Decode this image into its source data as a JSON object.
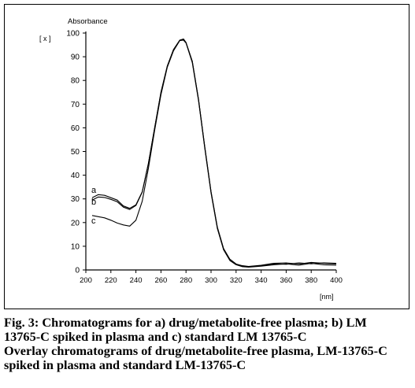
{
  "chart_data": {
    "type": "line",
    "ylabel": "Absorbance",
    "yunit": "[ x ]",
    "xunit": "[nm]",
    "xlim": [
      200,
      400
    ],
    "ylim": [
      0,
      100
    ],
    "xticks": [
      "200",
      "220",
      "240",
      "260",
      "280",
      "300",
      "320",
      "340",
      "360",
      "380",
      "400"
    ],
    "yticks": [
      "0",
      "10",
      "20",
      "30",
      "40",
      "50",
      "60",
      "70",
      "80",
      "90",
      "100"
    ],
    "grid": false,
    "series": [
      {
        "name": "a",
        "color": "#000000",
        "points": [
          [
            205,
            30.5
          ],
          [
            210,
            31.8
          ],
          [
            215,
            31.5
          ],
          [
            220,
            30.5
          ],
          [
            225,
            29.5
          ],
          [
            230,
            27
          ],
          [
            235,
            26
          ],
          [
            240,
            27.5
          ],
          [
            245,
            33
          ],
          [
            250,
            45
          ],
          [
            255,
            60
          ],
          [
            260,
            75
          ],
          [
            265,
            86
          ],
          [
            270,
            93
          ],
          [
            275,
            97
          ],
          [
            278,
            97.5
          ],
          [
            280,
            96
          ],
          [
            285,
            88
          ],
          [
            290,
            72
          ],
          [
            295,
            52
          ],
          [
            300,
            33
          ],
          [
            305,
            18
          ],
          [
            310,
            9
          ],
          [
            315,
            4.5
          ],
          [
            320,
            2.5
          ],
          [
            325,
            1.8
          ],
          [
            330,
            1.5
          ],
          [
            340,
            2
          ],
          [
            350,
            2.8
          ],
          [
            360,
            3
          ],
          [
            370,
            2.5
          ],
          [
            380,
            3.2
          ],
          [
            390,
            2.8
          ],
          [
            400,
            2.5
          ]
        ]
      },
      {
        "name": "b",
        "color": "#000000",
        "points": [
          [
            205,
            29.5
          ],
          [
            210,
            30.8
          ],
          [
            215,
            30.6
          ],
          [
            220,
            29.8
          ],
          [
            225,
            28.8
          ],
          [
            230,
            26.5
          ],
          [
            235,
            25.5
          ],
          [
            240,
            27.2
          ],
          [
            245,
            32.8
          ],
          [
            250,
            45
          ],
          [
            255,
            60
          ],
          [
            260,
            75
          ],
          [
            265,
            86
          ],
          [
            270,
            93
          ],
          [
            275,
            97
          ],
          [
            278,
            97.3
          ],
          [
            280,
            96
          ],
          [
            285,
            88
          ],
          [
            290,
            72
          ],
          [
            295,
            52
          ],
          [
            300,
            33
          ],
          [
            305,
            18
          ],
          [
            310,
            9
          ],
          [
            315,
            4.5
          ],
          [
            320,
            2.5
          ],
          [
            325,
            1.6
          ],
          [
            330,
            1.4
          ],
          [
            340,
            1.8
          ],
          [
            350,
            2.6
          ],
          [
            360,
            2.4
          ],
          [
            370,
            3
          ],
          [
            380,
            2.6
          ],
          [
            390,
            3
          ],
          [
            400,
            2.8
          ]
        ]
      },
      {
        "name": "c",
        "color": "#000000",
        "points": [
          [
            205,
            23
          ],
          [
            210,
            22.5
          ],
          [
            215,
            22
          ],
          [
            220,
            21
          ],
          [
            225,
            19.8
          ],
          [
            230,
            19
          ],
          [
            235,
            18.5
          ],
          [
            240,
            21
          ],
          [
            245,
            29
          ],
          [
            250,
            43
          ],
          [
            255,
            59
          ],
          [
            260,
            74
          ],
          [
            265,
            85.5
          ],
          [
            270,
            92.5
          ],
          [
            275,
            96.8
          ],
          [
            278,
            97
          ],
          [
            280,
            95.8
          ],
          [
            285,
            87.5
          ],
          [
            290,
            71.5
          ],
          [
            295,
            51.5
          ],
          [
            300,
            32.5
          ],
          [
            305,
            17.5
          ],
          [
            310,
            8.5
          ],
          [
            315,
            4
          ],
          [
            320,
            2.2
          ],
          [
            325,
            1.4
          ],
          [
            330,
            1.2
          ],
          [
            340,
            1.6
          ],
          [
            350,
            2.2
          ],
          [
            360,
            2.6
          ],
          [
            370,
            2
          ],
          [
            380,
            2.8
          ],
          [
            390,
            2.2
          ],
          [
            400,
            2
          ]
        ]
      }
    ]
  },
  "caption": {
    "line1": "Fig. 3: Chromatograms for a) drug/metabolite-free plasma; b) LM",
    "line2": "13765-C spiked in plasma and c) standard LM 13765-C",
    "line3": "Overlay chromatograms of drug/metabolite-free plasma, LM-13765-C",
    "line4": "spiked in plasma and standard LM-13765-C"
  }
}
